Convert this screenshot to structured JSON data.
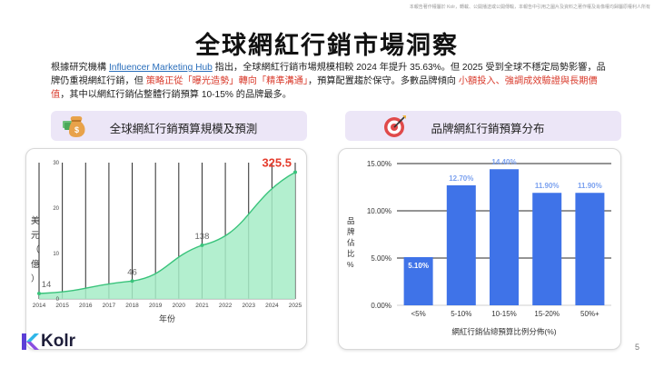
{
  "disclaimer": "本報告著作權屬於 Kolr，轉載、公開播送或公開傳輸，本報告中引用之圖片及資料之著作權及肖像權均歸屬原權利人所有",
  "title": "全球網紅行銷市場洞察",
  "intro": {
    "p1": "根據研究機構 ",
    "link": "Influencer Marketing Hub",
    "p2": " 指出，全球網紅行銷市場規模相較 2024 年提升 35.63%。但 2025 受到全球不穩定局勢影響，品牌仍重視網紅行銷，但 ",
    "red1": "策略正從「曝光造勢」轉向「精準溝通」",
    "p3": "，預算配置趨於保守。多數品牌傾向 ",
    "red2": "小額投入、強調成效驗證與長期價值",
    "p4": "，其中以網紅行銷佔整體行銷預算 10-15% 的品牌最多。"
  },
  "left_header": "全球網紅行銷預算規模及預測",
  "right_header": "品牌網紅行銷預算分布",
  "icons": {
    "left": "money-bag-icon",
    "right": "target-icon"
  },
  "colors": {
    "area": "#a6ecc7",
    "line": "#39c37b",
    "bar": "#3f73e8",
    "bar_label": "#7ba1ef",
    "highlight_label": "#e43b2c"
  },
  "chart_data": [
    {
      "type": "area",
      "x": [
        "2014",
        "2015",
        "2016",
        "2017",
        "2018",
        "2019",
        "2020",
        "2021",
        "2022",
        "2023",
        "2024",
        "2025"
      ],
      "values": [
        14,
        null,
        null,
        null,
        46,
        null,
        null,
        138,
        null,
        null,
        null,
        325.5
      ],
      "labels": {
        "2014": "14",
        "2018": "46",
        "2021": "138",
        "2025": "325.5"
      },
      "y_ticks": [
        "0",
        "10",
        "20",
        "30"
      ],
      "ylim": [
        0,
        350
      ],
      "ylabel": "美元（億）",
      "xlabel": "年份",
      "grid": "vertical"
    },
    {
      "type": "bar",
      "categories": [
        "<5%",
        "5-10%",
        "10-15%",
        "15-20%",
        "50%+"
      ],
      "values": [
        5.1,
        12.7,
        14.4,
        11.9,
        11.9
      ],
      "value_labels": [
        "5.10%",
        "12.70%",
        "14.40%",
        "11.90%",
        "11.90%"
      ],
      "y_ticks": [
        "0.00%",
        "5.00%",
        "10.00%",
        "15.00%"
      ],
      "ylim": [
        0,
        15
      ],
      "ylabel": "品牌佔比%",
      "xlabel": "網紅行銷佔總預算比例分佈(%)",
      "grid": "horizontal"
    }
  ],
  "logo": "Kolr",
  "page_number": "5"
}
